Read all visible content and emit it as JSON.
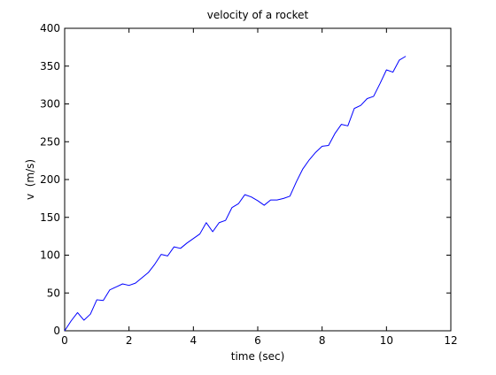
{
  "chart_data": {
    "type": "line",
    "title": "velocity of a rocket",
    "xlabel": "time (sec)",
    "ylabel": "v  (m/s)",
    "xlim": [
      0,
      12
    ],
    "ylim": [
      0,
      400
    ],
    "xticks": [
      0,
      2,
      4,
      6,
      8,
      10,
      12
    ],
    "yticks": [
      0,
      50,
      100,
      150,
      200,
      250,
      300,
      350,
      400
    ],
    "grid": false,
    "legend": "none",
    "series": [
      {
        "color": "#0000ff",
        "x": [
          0,
          0.2,
          0.4,
          0.6,
          0.8,
          1.0,
          1.2,
          1.4,
          1.6,
          1.8,
          2.0,
          2.2,
          2.4,
          2.6,
          2.8,
          3.0,
          3.2,
          3.4,
          3.6,
          3.8,
          4.0,
          4.2,
          4.4,
          4.6,
          4.8,
          5.0,
          5.2,
          5.4,
          5.6,
          5.8,
          6.0,
          6.2,
          6.4,
          6.6,
          6.8,
          7.0,
          7.2,
          7.4,
          7.6,
          7.8,
          8.0,
          8.2,
          8.4,
          8.6,
          8.8,
          9.0,
          9.2,
          9.4,
          9.6,
          9.8,
          10.0,
          10.2,
          10.4,
          10.6
        ],
        "y": [
          0,
          13,
          24,
          14,
          22,
          41,
          40,
          54,
          58,
          62,
          60,
          63,
          70,
          77,
          88,
          101,
          99,
          111,
          109,
          116,
          122,
          128,
          143,
          131,
          143,
          146,
          163,
          168,
          180,
          177,
          172,
          166,
          173,
          173,
          175,
          178,
          197,
          214,
          226,
          236,
          244,
          245,
          261,
          273,
          271,
          294,
          298,
          307,
          310,
          327,
          345,
          342,
          358,
          363
        ]
      }
    ]
  }
}
